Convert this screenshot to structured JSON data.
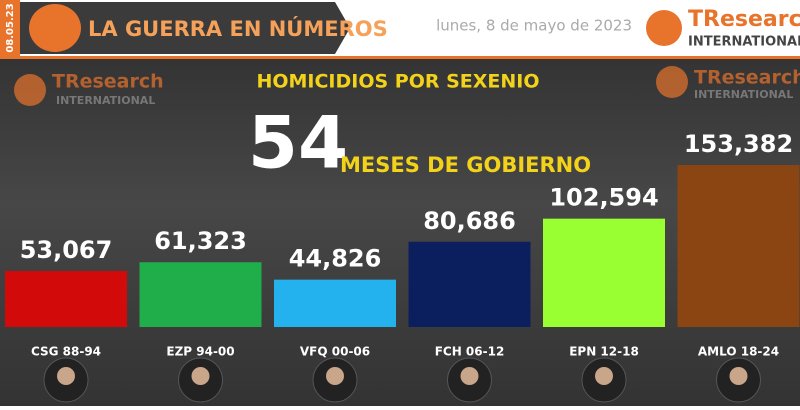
{
  "header": {
    "badge_date": "08.05.23",
    "title": "LA GUERRA EN NÚMEROS",
    "date": "lunes, 8 de mayo de 2023",
    "logo_name": "TResearch",
    "logo_sub": "INTERNATIONAL"
  },
  "chart_data": {
    "type": "bar",
    "title": "HOMICIDIOS POR SEXENIO",
    "months": 54,
    "months_label": "MESES DE GOBIERNO",
    "categories": [
      "CSG 88-94",
      "EZP 94-00",
      "VFQ 00-06",
      "FCH 06-12",
      "EPN 12-18",
      "AMLO 18-24"
    ],
    "values": [
      53067,
      61323,
      44826,
      80686,
      102594,
      153382
    ],
    "value_labels": [
      "53,067",
      "61,323",
      "44,826",
      "80,686",
      "102,594",
      "153,382"
    ],
    "colors": [
      "#d30a0a",
      "#20ae4a",
      "#24b2ef",
      "#0b1f5e",
      "#99ff33",
      "#8a4512"
    ]
  }
}
